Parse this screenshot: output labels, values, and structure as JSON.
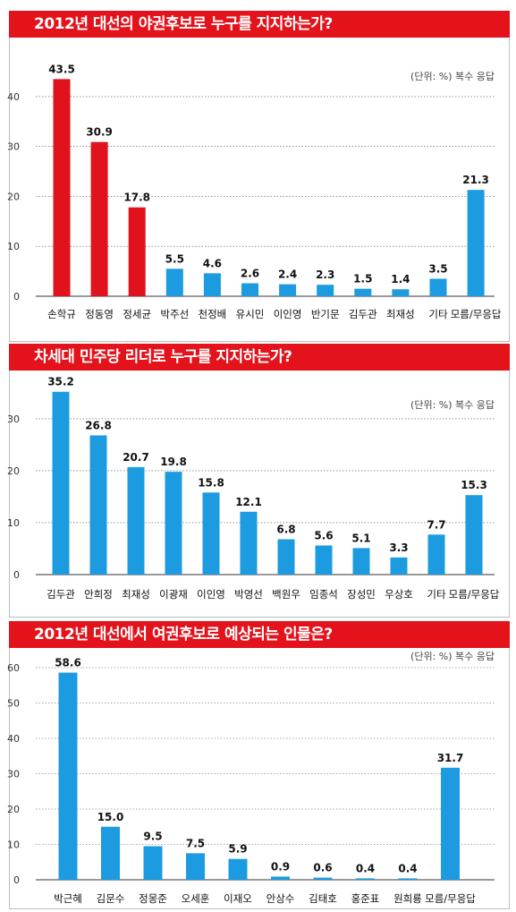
{
  "chart_data": [
    {
      "type": "bar",
      "title": "2012년 대선의 야권후보로 누구를 지지하는가?",
      "unit_note": "(단위: %) 복수 응답",
      "categories": [
        "손학규",
        "정동영",
        "정세균",
        "박주선",
        "천정배",
        "유시민",
        "이인영",
        "반기문",
        "김두관",
        "최재성",
        "기타",
        "모름/무응답"
      ],
      "values": [
        43.5,
        30.9,
        17.8,
        5.5,
        4.6,
        2.6,
        2.4,
        2.3,
        1.5,
        1.4,
        3.5,
        21.3
      ],
      "colors": [
        "#e0121c",
        "#e0121c",
        "#e0121c",
        "#1c9be0",
        "#1c9be0",
        "#1c9be0",
        "#1c9be0",
        "#1c9be0",
        "#1c9be0",
        "#1c9be0",
        "#1c9be0",
        "#1c9be0"
      ],
      "yticks": [
        0,
        10,
        20,
        30,
        40
      ],
      "ylim": [
        0,
        45
      ]
    },
    {
      "type": "bar",
      "title": "차세대 민주당 리더로 누구를 지지하는가?",
      "unit_note": "(단위: %) 복수 응답",
      "categories": [
        "김두관",
        "안희정",
        "최재성",
        "이광재",
        "이인영",
        "박영선",
        "백원우",
        "임종석",
        "장성민",
        "우상호",
        "기타",
        "모름/무응답"
      ],
      "values": [
        35.2,
        26.8,
        20.7,
        19.8,
        15.8,
        12.1,
        6.8,
        5.6,
        5.1,
        3.3,
        7.7,
        15.3
      ],
      "colors": [
        "#1c9be0",
        "#1c9be0",
        "#1c9be0",
        "#1c9be0",
        "#1c9be0",
        "#1c9be0",
        "#1c9be0",
        "#1c9be0",
        "#1c9be0",
        "#1c9be0",
        "#1c9be0",
        "#1c9be0"
      ],
      "yticks": [
        0,
        10,
        20,
        30
      ],
      "ylim": [
        0,
        35.5
      ]
    },
    {
      "type": "bar",
      "title": "2012년 대선에서 여권후보로 예상되는 인물은?",
      "unit_note": "(단위: %) 복수 응답",
      "categories": [
        "박근혜",
        "김문수",
        "정몽준",
        "오세훈",
        "이재오",
        "안상수",
        "김태호",
        "홍준표",
        "원희룡",
        "모름/무응답"
      ],
      "values": [
        58.6,
        15.0,
        9.5,
        7.5,
        5.9,
        0.9,
        0.6,
        0.4,
        0.4,
        31.7
      ],
      "value_labels": [
        "58.6",
        "15.0",
        "9.5",
        "7.5",
        "5.9",
        "0.9",
        "0.6",
        "0.4",
        "0.4",
        "31.7"
      ],
      "colors": [
        "#1c9be0",
        "#1c9be0",
        "#1c9be0",
        "#1c9be0",
        "#1c9be0",
        "#1c9be0",
        "#1c9be0",
        "#1c9be0",
        "#1c9be0",
        "#1c9be0"
      ],
      "yticks": [
        0,
        10,
        20,
        30,
        40,
        50,
        60
      ],
      "ylim": [
        0,
        60
      ]
    }
  ]
}
